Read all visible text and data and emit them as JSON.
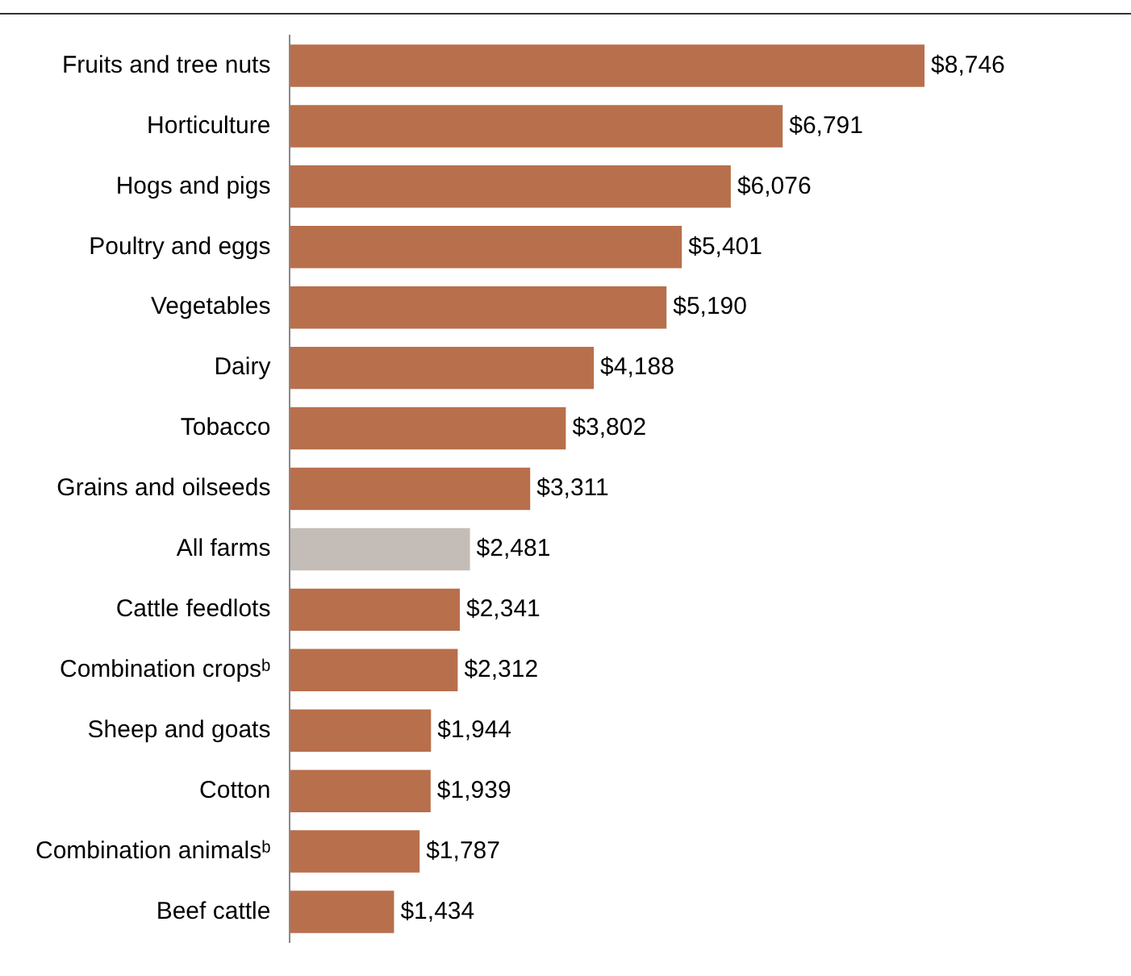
{
  "chart_data": {
    "type": "bar",
    "orientation": "horizontal",
    "categories": [
      "Fruits and tree nuts",
      "Horticulture",
      "Hogs and pigs",
      "Poultry and eggs",
      "Vegetables",
      "Dairy",
      "Tobacco",
      "Grains and oilseeds",
      "All farms",
      "Cattle feedlots",
      "Combination cropsᵇ",
      "Sheep and goats",
      "Cotton",
      "Combination animalsᵇ",
      "Beef cattle"
    ],
    "values": [
      8746,
      6791,
      6076,
      5401,
      5190,
      4188,
      3802,
      3311,
      2481,
      2341,
      2312,
      1944,
      1939,
      1787,
      1434
    ],
    "colors": [
      "#b86f4c",
      "#b86f4c",
      "#b86f4c",
      "#b86f4c",
      "#b86f4c",
      "#b86f4c",
      "#b86f4c",
      "#b86f4c",
      "#c4bcb6",
      "#b86f4c",
      "#b86f4c",
      "#b86f4c",
      "#b86f4c",
      "#b86f4c",
      "#b86f4c"
    ],
    "value_labels": [
      "$8,746",
      "$6,791",
      "$6,076",
      "$5,401",
      "$5,190",
      "$4,188",
      "$3,802",
      "$3,311",
      "$2,481",
      "$2,341",
      "$2,312",
      "$1,944",
      "$1,939",
      "$1,787",
      "$1,434"
    ],
    "legend": false
  }
}
